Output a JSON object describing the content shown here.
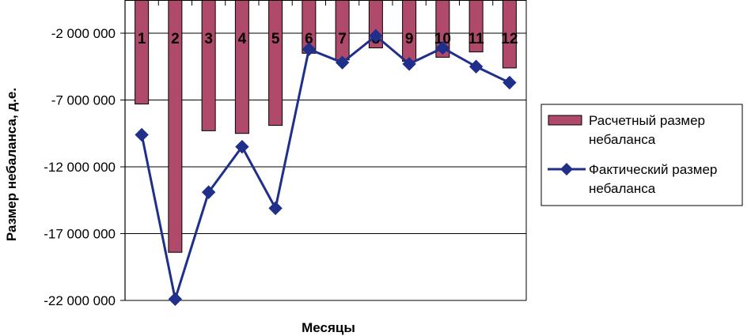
{
  "chart_data": {
    "type": "bar+line",
    "title": "",
    "xlabel": "Месяцы",
    "ylabel": "Размер небаланса, д.е.",
    "categories": [
      "1",
      "2",
      "3",
      "4",
      "5",
      "6",
      "7",
      "8",
      "9",
      "10",
      "11",
      "12"
    ],
    "y_ticks": [
      {
        "value": -2000000,
        "label": "-2 000 000"
      },
      {
        "value": -7000000,
        "label": "-7 000 000"
      },
      {
        "value": -12000000,
        "label": "-12 000 000"
      },
      {
        "value": -17000000,
        "label": "-17 000 000"
      },
      {
        "value": -22000000,
        "label": "-22 000 000"
      }
    ],
    "ylim": [
      -22000000,
      0
    ],
    "grid": true,
    "legend_position": "right",
    "series": [
      {
        "name": "Расчетный размер небаланса",
        "type": "bar",
        "color": "#b04a6b",
        "values": [
          -7300000,
          -18400000,
          -9300000,
          -9500000,
          -8900000,
          -3500000,
          -4000000,
          -3100000,
          -4100000,
          -3800000,
          -3400000,
          -4600000
        ]
      },
      {
        "name": "Фактический размер небаланса",
        "type": "line",
        "color": "#1f2f8a",
        "marker": "diamond",
        "values": [
          -9600000,
          -21900000,
          -13900000,
          -10500000,
          -15100000,
          -3200000,
          -4200000,
          -2200000,
          -4300000,
          -3100000,
          -4500000,
          -5700000
        ]
      }
    ]
  }
}
